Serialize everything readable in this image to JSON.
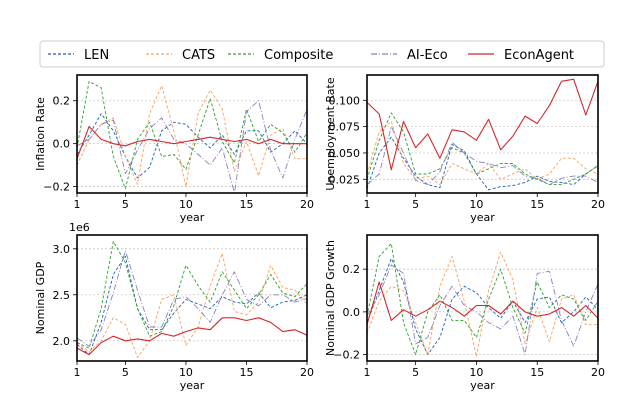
{
  "legend": {
    "items": [
      {
        "label": "LEN",
        "color": "#1f5fb4",
        "dash": "3,2"
      },
      {
        "label": "CATS",
        "color": "#f5a25d",
        "dash": "3,2"
      },
      {
        "label": "Composite",
        "color": "#2ca02c",
        "dash": "3,2"
      },
      {
        "label": "AI-Eco",
        "color": "#8b7fc0",
        "dash": "6,2,1,2"
      },
      {
        "label": "EconAgent",
        "color": "#d62728",
        "dash": ""
      }
    ]
  },
  "chart_data": [
    {
      "type": "line",
      "title": "",
      "xlabel": "year",
      "ylabel": "Inflation Rate",
      "offset_label": "",
      "xlim": [
        1,
        20
      ],
      "ylim": [
        -0.23,
        0.32
      ],
      "xticks": [
        1,
        5,
        10,
        15,
        20
      ],
      "xtick_labels": [
        "1",
        "5",
        "10",
        "15",
        "20"
      ],
      "yticks": [
        -0.2,
        0.0,
        0.2
      ],
      "ytick_labels": [
        "−0.2",
        "0.0",
        "0.2"
      ],
      "x": [
        1,
        2,
        3,
        4,
        5,
        6,
        7,
        8,
        9,
        10,
        11,
        12,
        13,
        14,
        15,
        16,
        17,
        18,
        19,
        20
      ],
      "series": [
        {
          "name": "LEN",
          "values": [
            -0.05,
            0.04,
            0.14,
            0.06,
            -0.06,
            -0.16,
            -0.11,
            0.06,
            0.1,
            0.09,
            0.03,
            -0.02,
            0.04,
            -0.05,
            0.06,
            0.06,
            -0.04,
            0.0,
            0.06,
            0.0
          ]
        },
        {
          "name": "CATS",
          "values": [
            -0.1,
            0.02,
            0.09,
            0.12,
            -0.06,
            -0.19,
            0.14,
            0.27,
            0.06,
            -0.2,
            0.14,
            0.25,
            0.16,
            -0.13,
            0.01,
            -0.15,
            0.04,
            0.07,
            -0.07,
            -0.07
          ]
        },
        {
          "name": "Composite",
          "values": [
            -0.02,
            0.29,
            0.26,
            -0.06,
            -0.21,
            0.02,
            0.1,
            -0.06,
            -0.05,
            -0.12,
            0.04,
            0.21,
            0.01,
            -0.09,
            0.16,
            0.01,
            0.09,
            0.05,
            -0.04,
            0.05
          ]
        },
        {
          "name": "AI-Eco",
          "values": [
            -0.01,
            0.02,
            0.09,
            0.11,
            -0.14,
            -0.03,
            0.07,
            0.12,
            0.02,
            0.0,
            -0.05,
            -0.1,
            -0.02,
            -0.23,
            0.15,
            0.2,
            -0.03,
            -0.16,
            0.02,
            0.16
          ]
        },
        {
          "name": "EconAgent",
          "values": [
            -0.07,
            0.08,
            0.02,
            0.0,
            -0.01,
            0.01,
            0.02,
            0.01,
            0.0,
            0.01,
            0.02,
            0.03,
            0.02,
            0.01,
            0.02,
            0.0,
            0.02,
            0.0,
            0.0,
            0.0
          ]
        }
      ]
    },
    {
      "type": "line",
      "title": "",
      "xlabel": "year",
      "ylabel": "Unemployment Rate",
      "offset_label": "",
      "xlim": [
        1,
        20
      ],
      "ylim": [
        0.012,
        0.124
      ],
      "xticks": [
        1,
        5,
        10,
        15,
        20
      ],
      "xtick_labels": [
        "1",
        "5",
        "10",
        "15",
        "20"
      ],
      "yticks": [
        0.025,
        0.05,
        0.075,
        0.1
      ],
      "ytick_labels": [
        "0.025",
        "0.050",
        "0.075",
        "0.100"
      ],
      "x": [
        1,
        2,
        3,
        4,
        5,
        6,
        7,
        8,
        9,
        10,
        11,
        12,
        13,
        14,
        15,
        16,
        17,
        18,
        19,
        20
      ],
      "series": [
        {
          "name": "LEN",
          "values": [
            0.016,
            0.05,
            0.065,
            0.045,
            0.028,
            0.02,
            0.017,
            0.058,
            0.052,
            0.03,
            0.015,
            0.018,
            0.019,
            0.022,
            0.028,
            0.023,
            0.022,
            0.02,
            0.03,
            0.038
          ]
        },
        {
          "name": "CATS",
          "values": [
            0.03,
            0.07,
            0.08,
            0.04,
            0.025,
            0.028,
            0.02,
            0.04,
            0.035,
            0.03,
            0.04,
            0.025,
            0.03,
            0.035,
            0.025,
            0.03,
            0.045,
            0.045,
            0.035,
            0.03
          ]
        },
        {
          "name": "Composite",
          "values": [
            0.025,
            0.062,
            0.088,
            0.07,
            0.03,
            0.03,
            0.035,
            0.055,
            0.05,
            0.03,
            0.035,
            0.04,
            0.04,
            0.03,
            0.025,
            0.02,
            0.02,
            0.025,
            0.03,
            0.038
          ]
        },
        {
          "name": "AI-Eco",
          "values": [
            0.02,
            0.03,
            0.075,
            0.05,
            0.024,
            0.02,
            0.032,
            0.06,
            0.05,
            0.042,
            0.04,
            0.036,
            0.038,
            0.028,
            0.026,
            0.02,
            0.026,
            0.028,
            0.028,
            0.022
          ]
        },
        {
          "name": "EconAgent",
          "values": [
            0.098,
            0.087,
            0.034,
            0.08,
            0.055,
            0.068,
            0.045,
            0.072,
            0.07,
            0.062,
            0.082,
            0.053,
            0.066,
            0.085,
            0.078,
            0.095,
            0.118,
            0.12,
            0.086,
            0.118
          ]
        }
      ]
    },
    {
      "type": "line",
      "title": "",
      "xlabel": "year",
      "ylabel": "Nominal GDP",
      "offset_label": "1e6",
      "xlim": [
        1,
        20
      ],
      "ylim": [
        1.78,
        3.15
      ],
      "xticks": [
        1,
        5,
        10,
        15,
        20
      ],
      "xtick_labels": [
        "1",
        "5",
        "10",
        "15",
        "20"
      ],
      "yticks": [
        2.0,
        2.5,
        3.0
      ],
      "ytick_labels": [
        "2.0",
        "2.5",
        "3.0"
      ],
      "x": [
        1,
        2,
        3,
        4,
        5,
        6,
        7,
        8,
        9,
        10,
        11,
        12,
        13,
        14,
        15,
        16,
        17,
        18,
        19,
        20
      ],
      "series": [
        {
          "name": "LEN",
          "values": [
            1.96,
            1.85,
            2.2,
            2.72,
            2.92,
            2.35,
            2.12,
            2.12,
            2.3,
            2.45,
            2.4,
            2.35,
            2.48,
            2.42,
            2.4,
            2.52,
            2.36,
            2.42,
            2.44,
            2.5
          ]
        },
        {
          "name": "CATS",
          "values": [
            1.98,
            1.88,
            2.0,
            2.25,
            2.18,
            1.82,
            2.0,
            2.45,
            2.5,
            1.95,
            2.15,
            2.6,
            2.95,
            2.32,
            2.28,
            2.42,
            2.82,
            2.58,
            2.55,
            2.4
          ]
        },
        {
          "name": "Composite",
          "values": [
            1.98,
            1.92,
            2.35,
            3.08,
            2.85,
            2.35,
            2.05,
            2.1,
            2.38,
            2.82,
            2.6,
            2.42,
            2.75,
            2.55,
            2.35,
            2.5,
            2.72,
            2.52,
            2.48,
            2.62
          ]
        },
        {
          "name": "AI-Eco",
          "values": [
            2.03,
            1.94,
            2.12,
            2.52,
            2.98,
            2.55,
            2.15,
            2.15,
            2.45,
            2.48,
            2.35,
            2.2,
            2.5,
            2.75,
            2.45,
            2.38,
            2.5,
            2.5,
            2.42,
            2.46
          ]
        },
        {
          "name": "EconAgent",
          "values": [
            1.92,
            1.85,
            1.98,
            2.05,
            2.0,
            2.02,
            2.0,
            2.08,
            2.05,
            2.1,
            2.14,
            2.12,
            2.25,
            2.25,
            2.22,
            2.25,
            2.2,
            2.1,
            2.12,
            2.06
          ]
        }
      ]
    },
    {
      "type": "line",
      "title": "",
      "xlabel": "year",
      "ylabel": "Nominal GDP Growth",
      "offset_label": "",
      "xlim": [
        1,
        20
      ],
      "ylim": [
        -0.23,
        0.36
      ],
      "xticks": [
        1,
        5,
        10,
        15,
        20
      ],
      "xtick_labels": [
        "1",
        "5",
        "10",
        "15",
        "20"
      ],
      "yticks": [
        -0.2,
        0.0,
        0.2
      ],
      "ytick_labels": [
        "−0.2",
        "0.0",
        "0.2"
      ],
      "x": [
        1,
        2,
        3,
        4,
        5,
        6,
        7,
        8,
        9,
        10,
        11,
        12,
        13,
        14,
        15,
        16,
        17,
        18,
        19,
        20
      ],
      "series": [
        {
          "name": "LEN",
          "values": [
            -0.05,
            0.1,
            0.25,
            0.14,
            -0.08,
            -0.2,
            -0.12,
            0.06,
            0.12,
            0.09,
            0.02,
            -0.03,
            0.05,
            -0.05,
            0.06,
            0.07,
            -0.05,
            0.0,
            0.07,
            0.01
          ]
        },
        {
          "name": "CATS",
          "values": [
            -0.1,
            0.05,
            0.12,
            0.1,
            -0.05,
            -0.2,
            0.12,
            0.26,
            0.05,
            -0.21,
            0.1,
            0.28,
            0.15,
            -0.15,
            0.02,
            -0.14,
            0.06,
            0.08,
            -0.06,
            -0.06
          ]
        },
        {
          "name": "Composite",
          "values": [
            -0.02,
            0.26,
            0.32,
            -0.05,
            -0.2,
            0.0,
            0.08,
            -0.04,
            -0.04,
            -0.12,
            0.06,
            0.2,
            0.02,
            -0.1,
            0.14,
            0.02,
            0.08,
            0.06,
            -0.04,
            0.05
          ]
        },
        {
          "name": "AI-Eco",
          "values": [
            -0.02,
            0.08,
            0.22,
            0.18,
            -0.15,
            -0.12,
            0.03,
            0.12,
            0.03,
            0.0,
            -0.05,
            -0.08,
            -0.02,
            -0.2,
            0.18,
            0.19,
            -0.04,
            -0.16,
            0.0,
            0.13
          ]
        },
        {
          "name": "EconAgent",
          "values": [
            -0.06,
            0.14,
            -0.04,
            0.01,
            -0.02,
            0.01,
            0.05,
            0.02,
            -0.02,
            0.03,
            0.03,
            -0.01,
            0.05,
            0.0,
            -0.02,
            -0.01,
            0.02,
            -0.02,
            0.03,
            -0.03
          ]
        }
      ]
    }
  ]
}
